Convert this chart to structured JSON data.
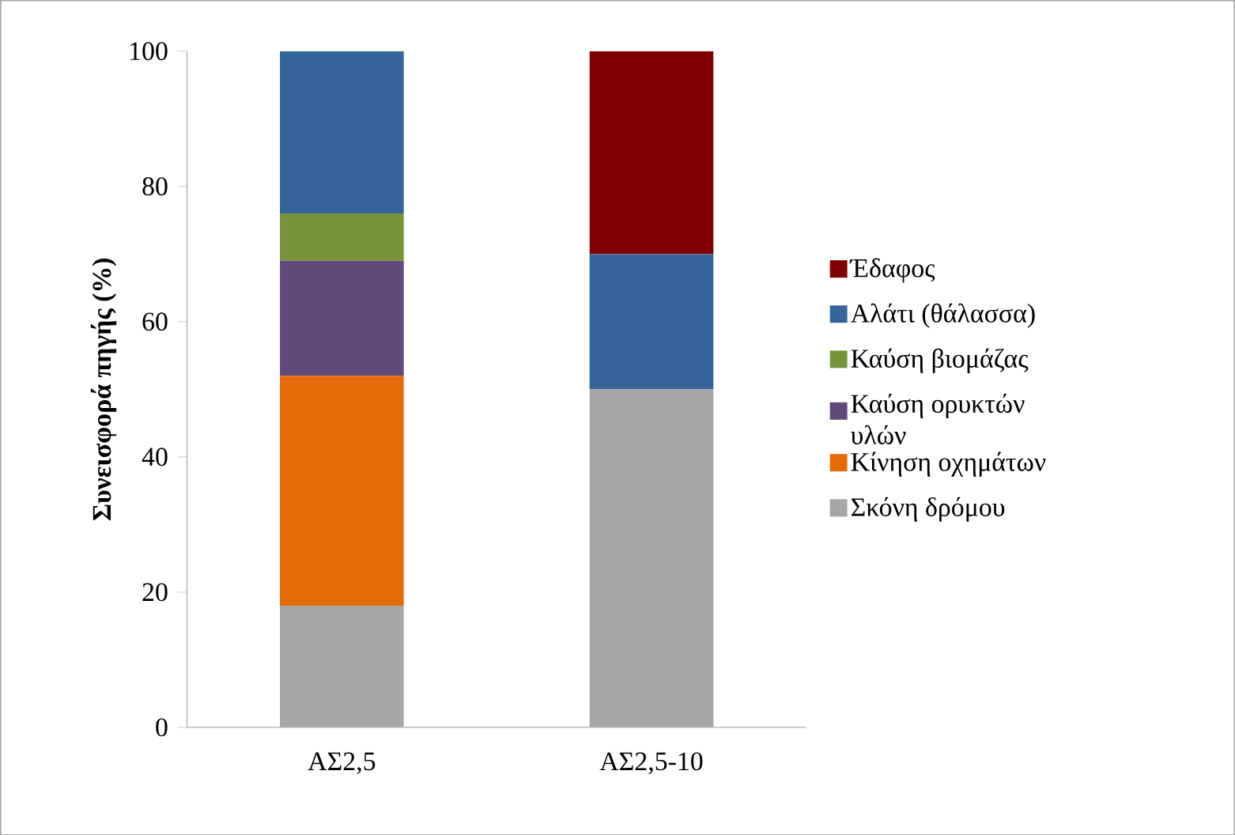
{
  "chart_data": {
    "type": "bar",
    "stacked": true,
    "ylabel": "Συνεισφορά πηγής (%)",
    "categories": [
      "ΑΣ2,5",
      "ΑΣ2,5-10"
    ],
    "series": [
      {
        "name": "Σκόνη δρόμου",
        "color": "#a6a6a6",
        "values": [
          18,
          50
        ]
      },
      {
        "name": "Κίνηση οχημάτων",
        "color": "#e46c0a",
        "values": [
          34,
          null
        ]
      },
      {
        "name": "Καύση ορυκτών υλών",
        "color": "#604a7b",
        "values": [
          17,
          null
        ]
      },
      {
        "name": "Καύση βιομάζας",
        "color": "#77933c",
        "values": [
          7,
          null
        ]
      },
      {
        "name": "Αλάτι (θάλασσα)",
        "color": "#35659a",
        "values": [
          24,
          20
        ]
      },
      {
        "name": "Έδαφος",
        "color": "#7f0000",
        "values": [
          null,
          30
        ]
      }
    ],
    "ylim": [
      0,
      100
    ],
    "yticks": [
      0,
      20,
      40,
      60,
      80,
      100
    ],
    "legend": "right",
    "grid": false
  }
}
